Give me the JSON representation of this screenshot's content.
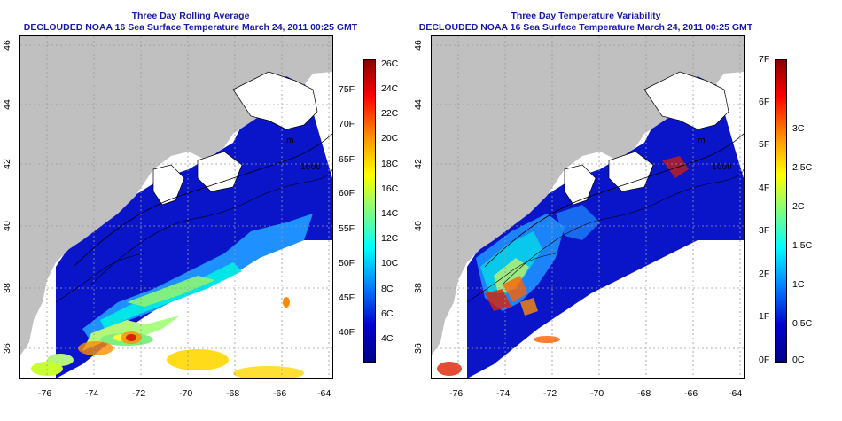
{
  "panels": [
    {
      "title_line1": "Three Day Rolling Average",
      "title_line2": "DECLOUDED NOAA 16 Sea Surface Temperature March 24, 2011 00:25 GMT",
      "lon_ticks": [
        "-76",
        "-74",
        "-72",
        "-70",
        "-68",
        "-66",
        "-64"
      ],
      "lat_ticks": [
        "46",
        "44",
        "42",
        "40",
        "38",
        "36"
      ],
      "colorbar": {
        "left_labels": [
          "75F",
          "70F",
          "65F",
          "60F",
          "55F",
          "50F",
          "45F",
          "40F"
        ],
        "right_labels": [
          "26C",
          "24C",
          "22C",
          "20C",
          "18C",
          "16C",
          "14C",
          "12C",
          "10C",
          "8C",
          "6C",
          "4C"
        ],
        "colors": [
          "#8b0000",
          "#ff0000",
          "#ff8c00",
          "#ffff00",
          "#7fff7f",
          "#00ffff",
          "#0080ff",
          "#0000cd",
          "#00008b"
        ]
      }
    },
    {
      "title_line1": "Three Day Temperature Variability",
      "title_line2": "DECLOUDED NOAA 16 Sea Surface Temperature March 24, 2011 00:25 GMT",
      "lon_ticks": [
        "-76",
        "-74",
        "-72",
        "-70",
        "-68",
        "-66",
        "-64"
      ],
      "lat_ticks": [
        "46",
        "44",
        "42",
        "40",
        "38",
        "36"
      ],
      "colorbar": {
        "left_labels": [
          "7F",
          "6F",
          "5F",
          "4F",
          "3F",
          "2F",
          "1F",
          "0F"
        ],
        "right_labels": [
          "3C",
          "2.5C",
          "2C",
          "1.5C",
          "1C",
          "0.5C",
          "0C"
        ],
        "colors": [
          "#8b0000",
          "#ff0000",
          "#ff8c00",
          "#ffff00",
          "#7fff7f",
          "#00ffff",
          "#0080ff",
          "#0000cd",
          "#00008b"
        ]
      }
    }
  ],
  "contour_labels": [
    "m",
    "1000"
  ],
  "colors": {
    "land": "#c0c0c0",
    "title": "#1a1aa8",
    "deep_blue": "#0a14c8",
    "grid": "#9a9a9a"
  }
}
